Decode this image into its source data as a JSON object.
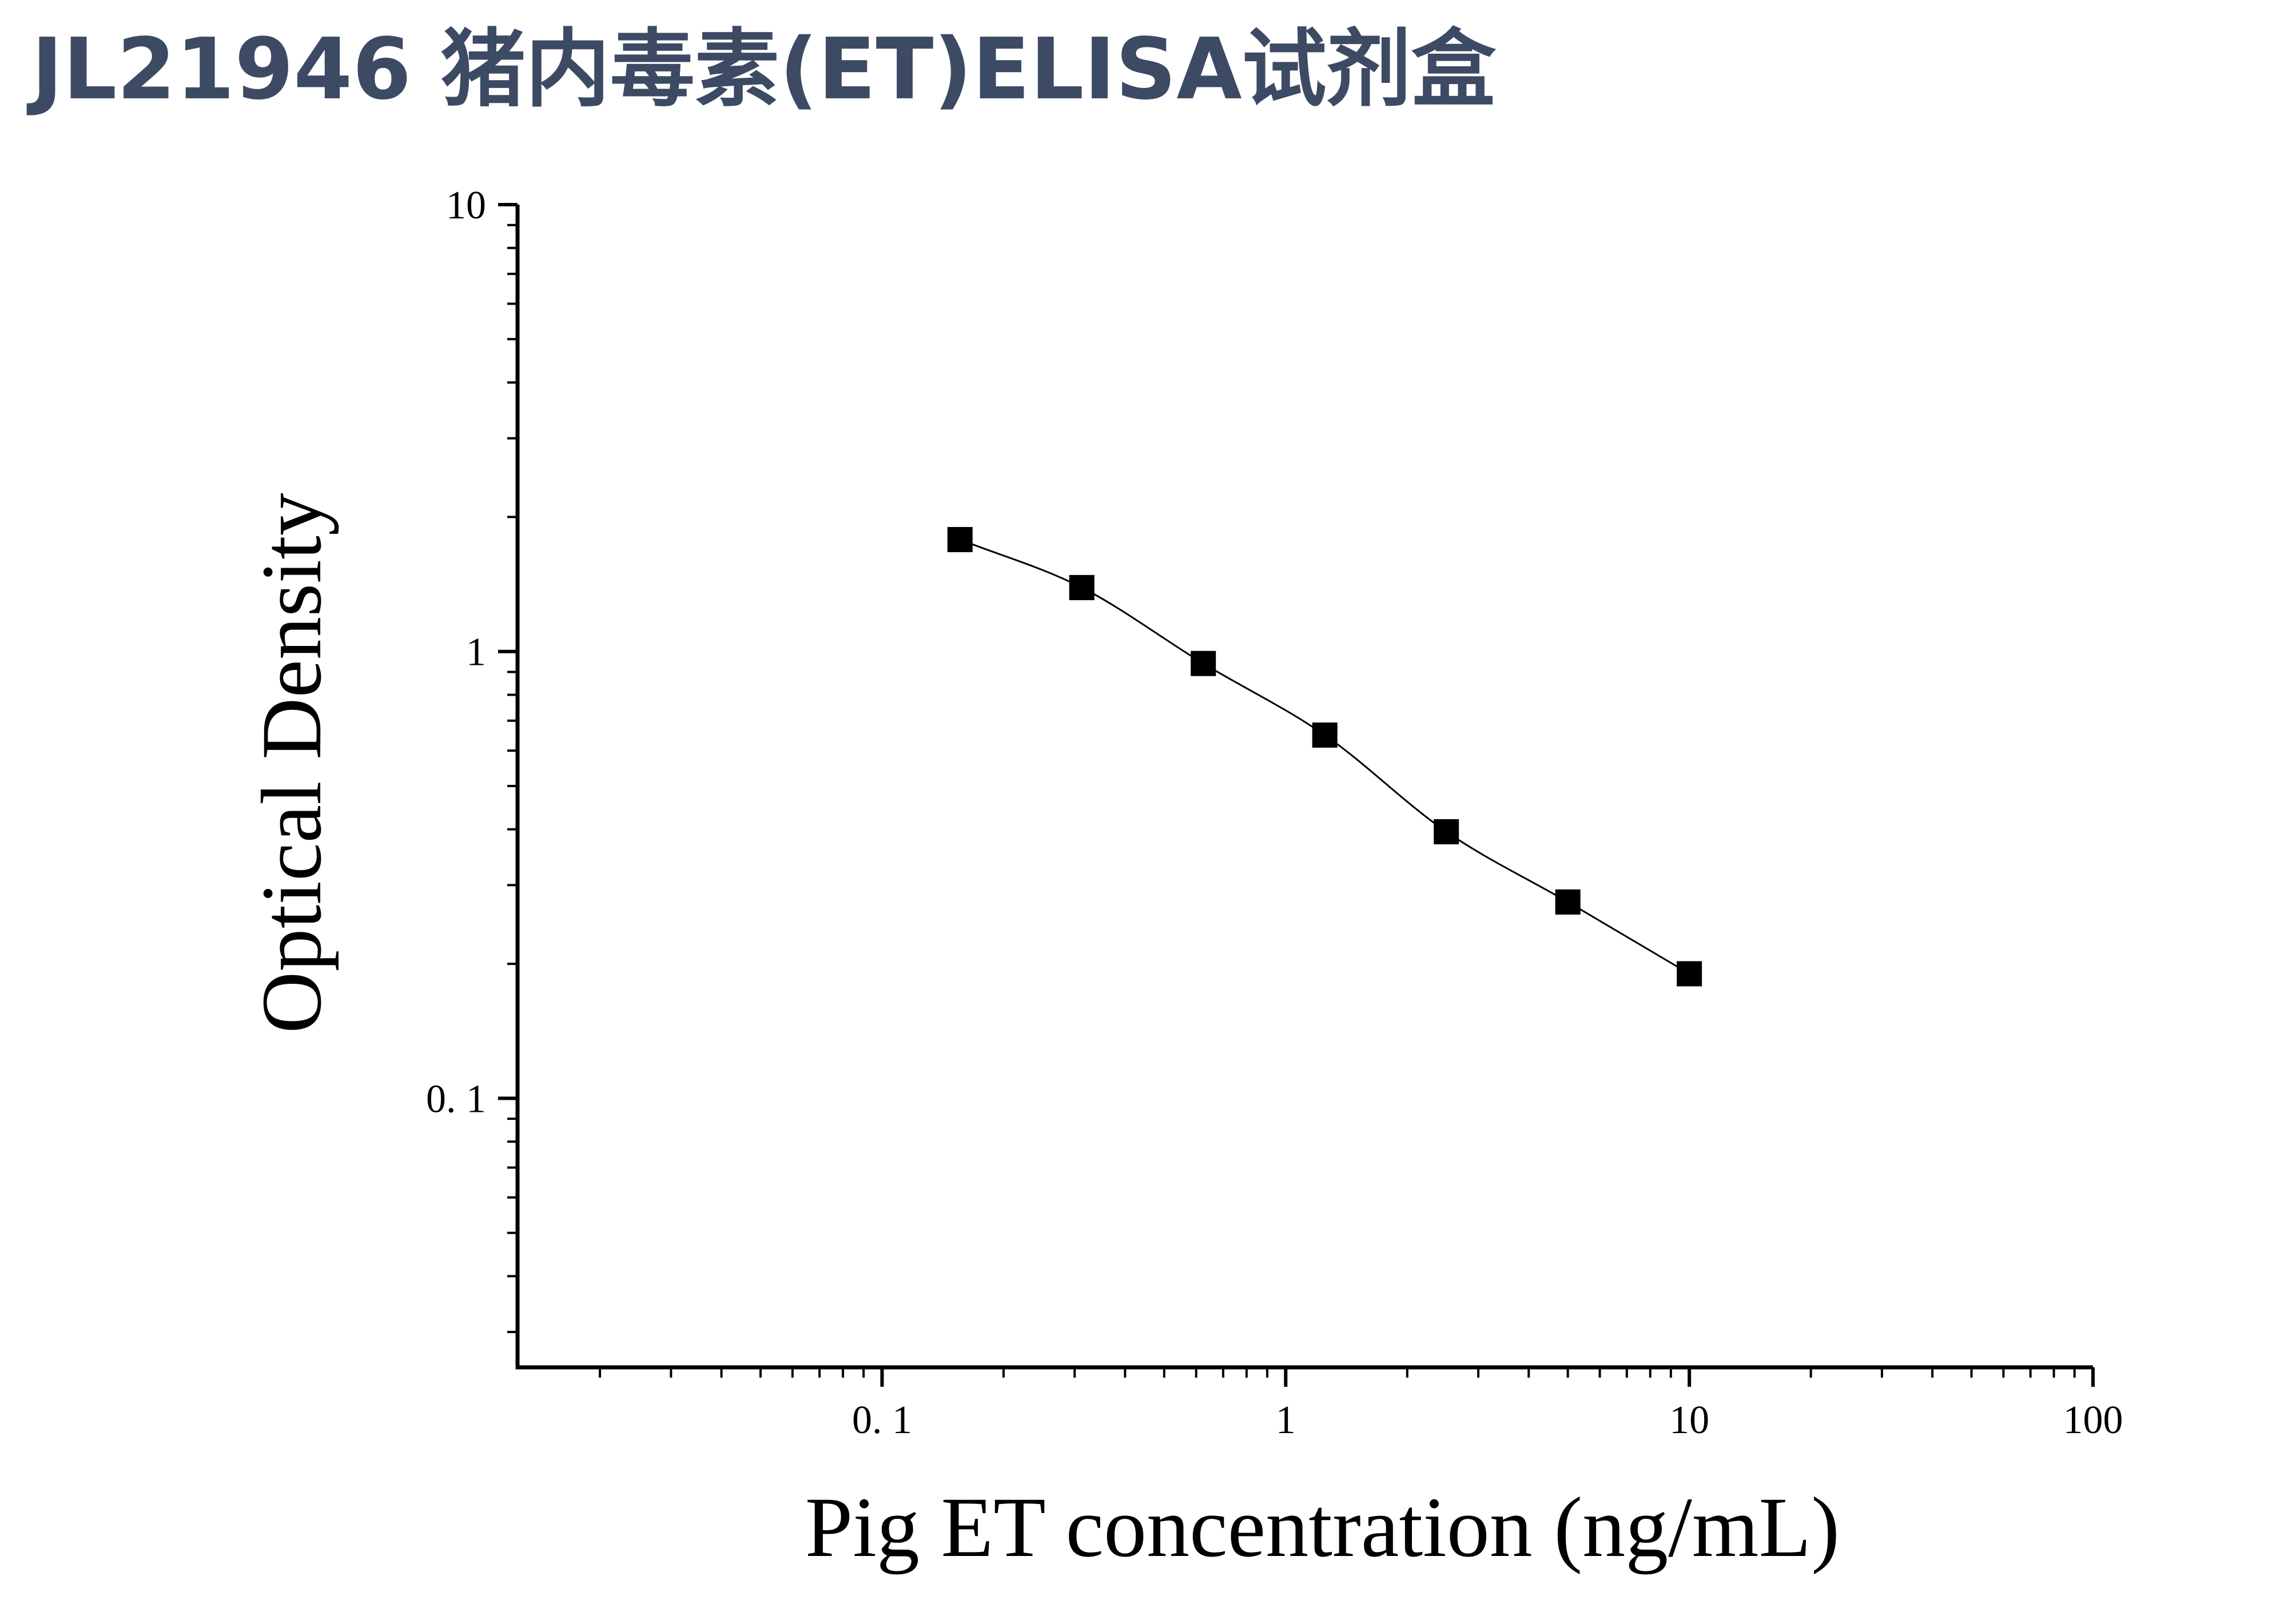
{
  "page": {
    "title": "JL21946 猪内毒素(ET)ELISA试剂盒"
  },
  "chart_data": {
    "type": "scatter",
    "xlabel": "Pig ET concentration (ng/mL)",
    "ylabel": "Optical Density",
    "x_scale": "log",
    "y_scale": "log",
    "xlim": [
      0.0125,
      100
    ],
    "ylim": [
      0.025,
      10
    ],
    "x_ticks": [
      0.1,
      1,
      10,
      100
    ],
    "x_tick_labels": [
      "0. 1",
      "1",
      "10",
      "100"
    ],
    "y_ticks": [
      0.1,
      1,
      10
    ],
    "y_tick_labels": [
      "0. 1",
      "1",
      "10"
    ],
    "grid": false,
    "series": [
      {
        "x": [
          0.156,
          0.3125,
          0.625,
          1.25,
          2.5,
          5,
          10
        ],
        "y": [
          1.78,
          1.39,
          0.94,
          0.65,
          0.395,
          0.275,
          0.19
        ],
        "marker": "square",
        "fit_line": true,
        "color": "#000000"
      }
    ]
  }
}
